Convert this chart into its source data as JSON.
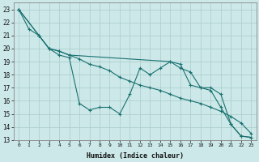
{
  "xlabel": "Humidex (Indice chaleur)",
  "xlim": [
    -0.5,
    23.5
  ],
  "ylim": [
    13,
    23.5
  ],
  "xticks": [
    0,
    1,
    2,
    3,
    4,
    5,
    6,
    7,
    8,
    9,
    10,
    11,
    12,
    13,
    14,
    15,
    16,
    17,
    18,
    19,
    20,
    21,
    22,
    23
  ],
  "yticks": [
    13,
    14,
    15,
    16,
    17,
    18,
    19,
    20,
    21,
    22,
    23
  ],
  "bg_color": "#cce8e8",
  "line_color": "#1a7070",
  "grid_color": "#aacccc",
  "lines": [
    {
      "x": [
        0,
        1,
        2,
        3,
        4,
        5,
        6,
        7,
        8,
        9,
        10,
        11,
        12,
        13,
        14,
        15,
        16,
        17,
        18,
        19,
        20,
        21,
        22,
        23
      ],
      "y": [
        23,
        21.5,
        21,
        20,
        19.5,
        19.3,
        15.8,
        15.3,
        15.5,
        15.5,
        15.0,
        16.5,
        18.5,
        18.0,
        18.5,
        19.0,
        18.5,
        18.2,
        17.0,
        16.8,
        15.5,
        14.2,
        13.3,
        13.2
      ]
    },
    {
      "x": [
        0,
        2,
        3,
        4,
        5,
        15,
        16,
        17,
        18,
        19,
        20,
        21,
        22,
        23
      ],
      "y": [
        23,
        21,
        20,
        19.8,
        19.5,
        19.0,
        18.8,
        17.2,
        17.0,
        17.0,
        16.5,
        14.2,
        13.3,
        13.2
      ]
    },
    {
      "x": [
        0,
        2,
        3,
        4,
        5,
        6,
        7,
        8,
        9,
        10,
        11,
        12,
        13,
        14,
        15,
        16,
        17,
        18,
        19,
        20,
        21,
        22,
        23
      ],
      "y": [
        23,
        21,
        20,
        19.8,
        19.5,
        19.2,
        18.8,
        18.6,
        18.3,
        17.8,
        17.5,
        17.2,
        17.0,
        16.8,
        16.5,
        16.2,
        16.0,
        15.8,
        15.5,
        15.2,
        14.8,
        14.3,
        13.5
      ]
    }
  ]
}
